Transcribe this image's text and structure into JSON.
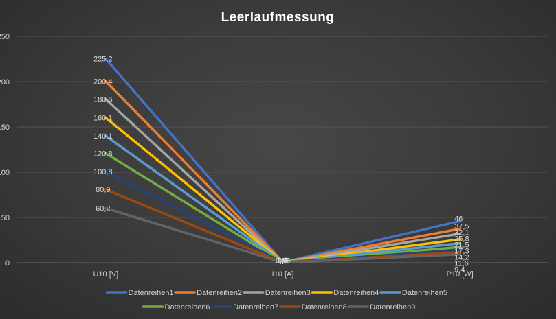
{
  "chart_data": {
    "type": "line",
    "title": "Leerlaufmessung",
    "categories": [
      "U10 [V]",
      "I10 [A]",
      "P10 [W]"
    ],
    "ylim": [
      0,
      250
    ],
    "yticks": [
      0,
      50,
      100,
      150,
      200,
      250
    ],
    "grid": true,
    "legend": "bottom",
    "series": [
      {
        "name": "Datenreihen1",
        "color": "#4472c4",
        "values": [
          225.2,
          0.6,
          46
        ],
        "labels": [
          "225,2",
          "0,6",
          "46"
        ]
      },
      {
        "name": "Datenreihen2",
        "color": "#ed7d31",
        "values": [
          200.4,
          0.55,
          37.5
        ],
        "labels": [
          "200,4",
          "0,55",
          "37,5"
        ]
      },
      {
        "name": "Datenreihen3",
        "color": "#a5a5a5",
        "values": [
          180.6,
          0.5,
          32.1
        ],
        "labels": [
          "180,6",
          "0,5",
          "32,1"
        ]
      },
      {
        "name": "Datenreihen4",
        "color": "#ffc000",
        "values": [
          160.1,
          0.45,
          25.8
        ],
        "labels": [
          "160,1",
          "0,45",
          "25,8"
        ]
      },
      {
        "name": "Datenreihen5",
        "color": "#5b9bd5",
        "values": [
          140.1,
          0.4,
          21.5
        ],
        "labels": [
          "140,1",
          "0,4",
          "21,5"
        ]
      },
      {
        "name": "Datenreihen6",
        "color": "#70ad47",
        "values": [
          120.8,
          0.35,
          17.3
        ],
        "labels": [
          "120,8",
          "0,35",
          "17,3"
        ]
      },
      {
        "name": "Datenreihen7",
        "color": "#264478",
        "values": [
          100.8,
          0.3,
          14.2
        ],
        "labels": [
          "100,8",
          "0,3",
          "14,2"
        ]
      },
      {
        "name": "Datenreihen8",
        "color": "#9e480e",
        "values": [
          80.9,
          0.25,
          11.6
        ],
        "labels": [
          "80,9",
          "0,25",
          "11,6"
        ]
      },
      {
        "name": "Datenreihen9",
        "color": "#636363",
        "values": [
          60.2,
          0.2,
          9.4
        ],
        "labels": [
          "60,2",
          "0,2",
          "9,4"
        ]
      }
    ]
  }
}
